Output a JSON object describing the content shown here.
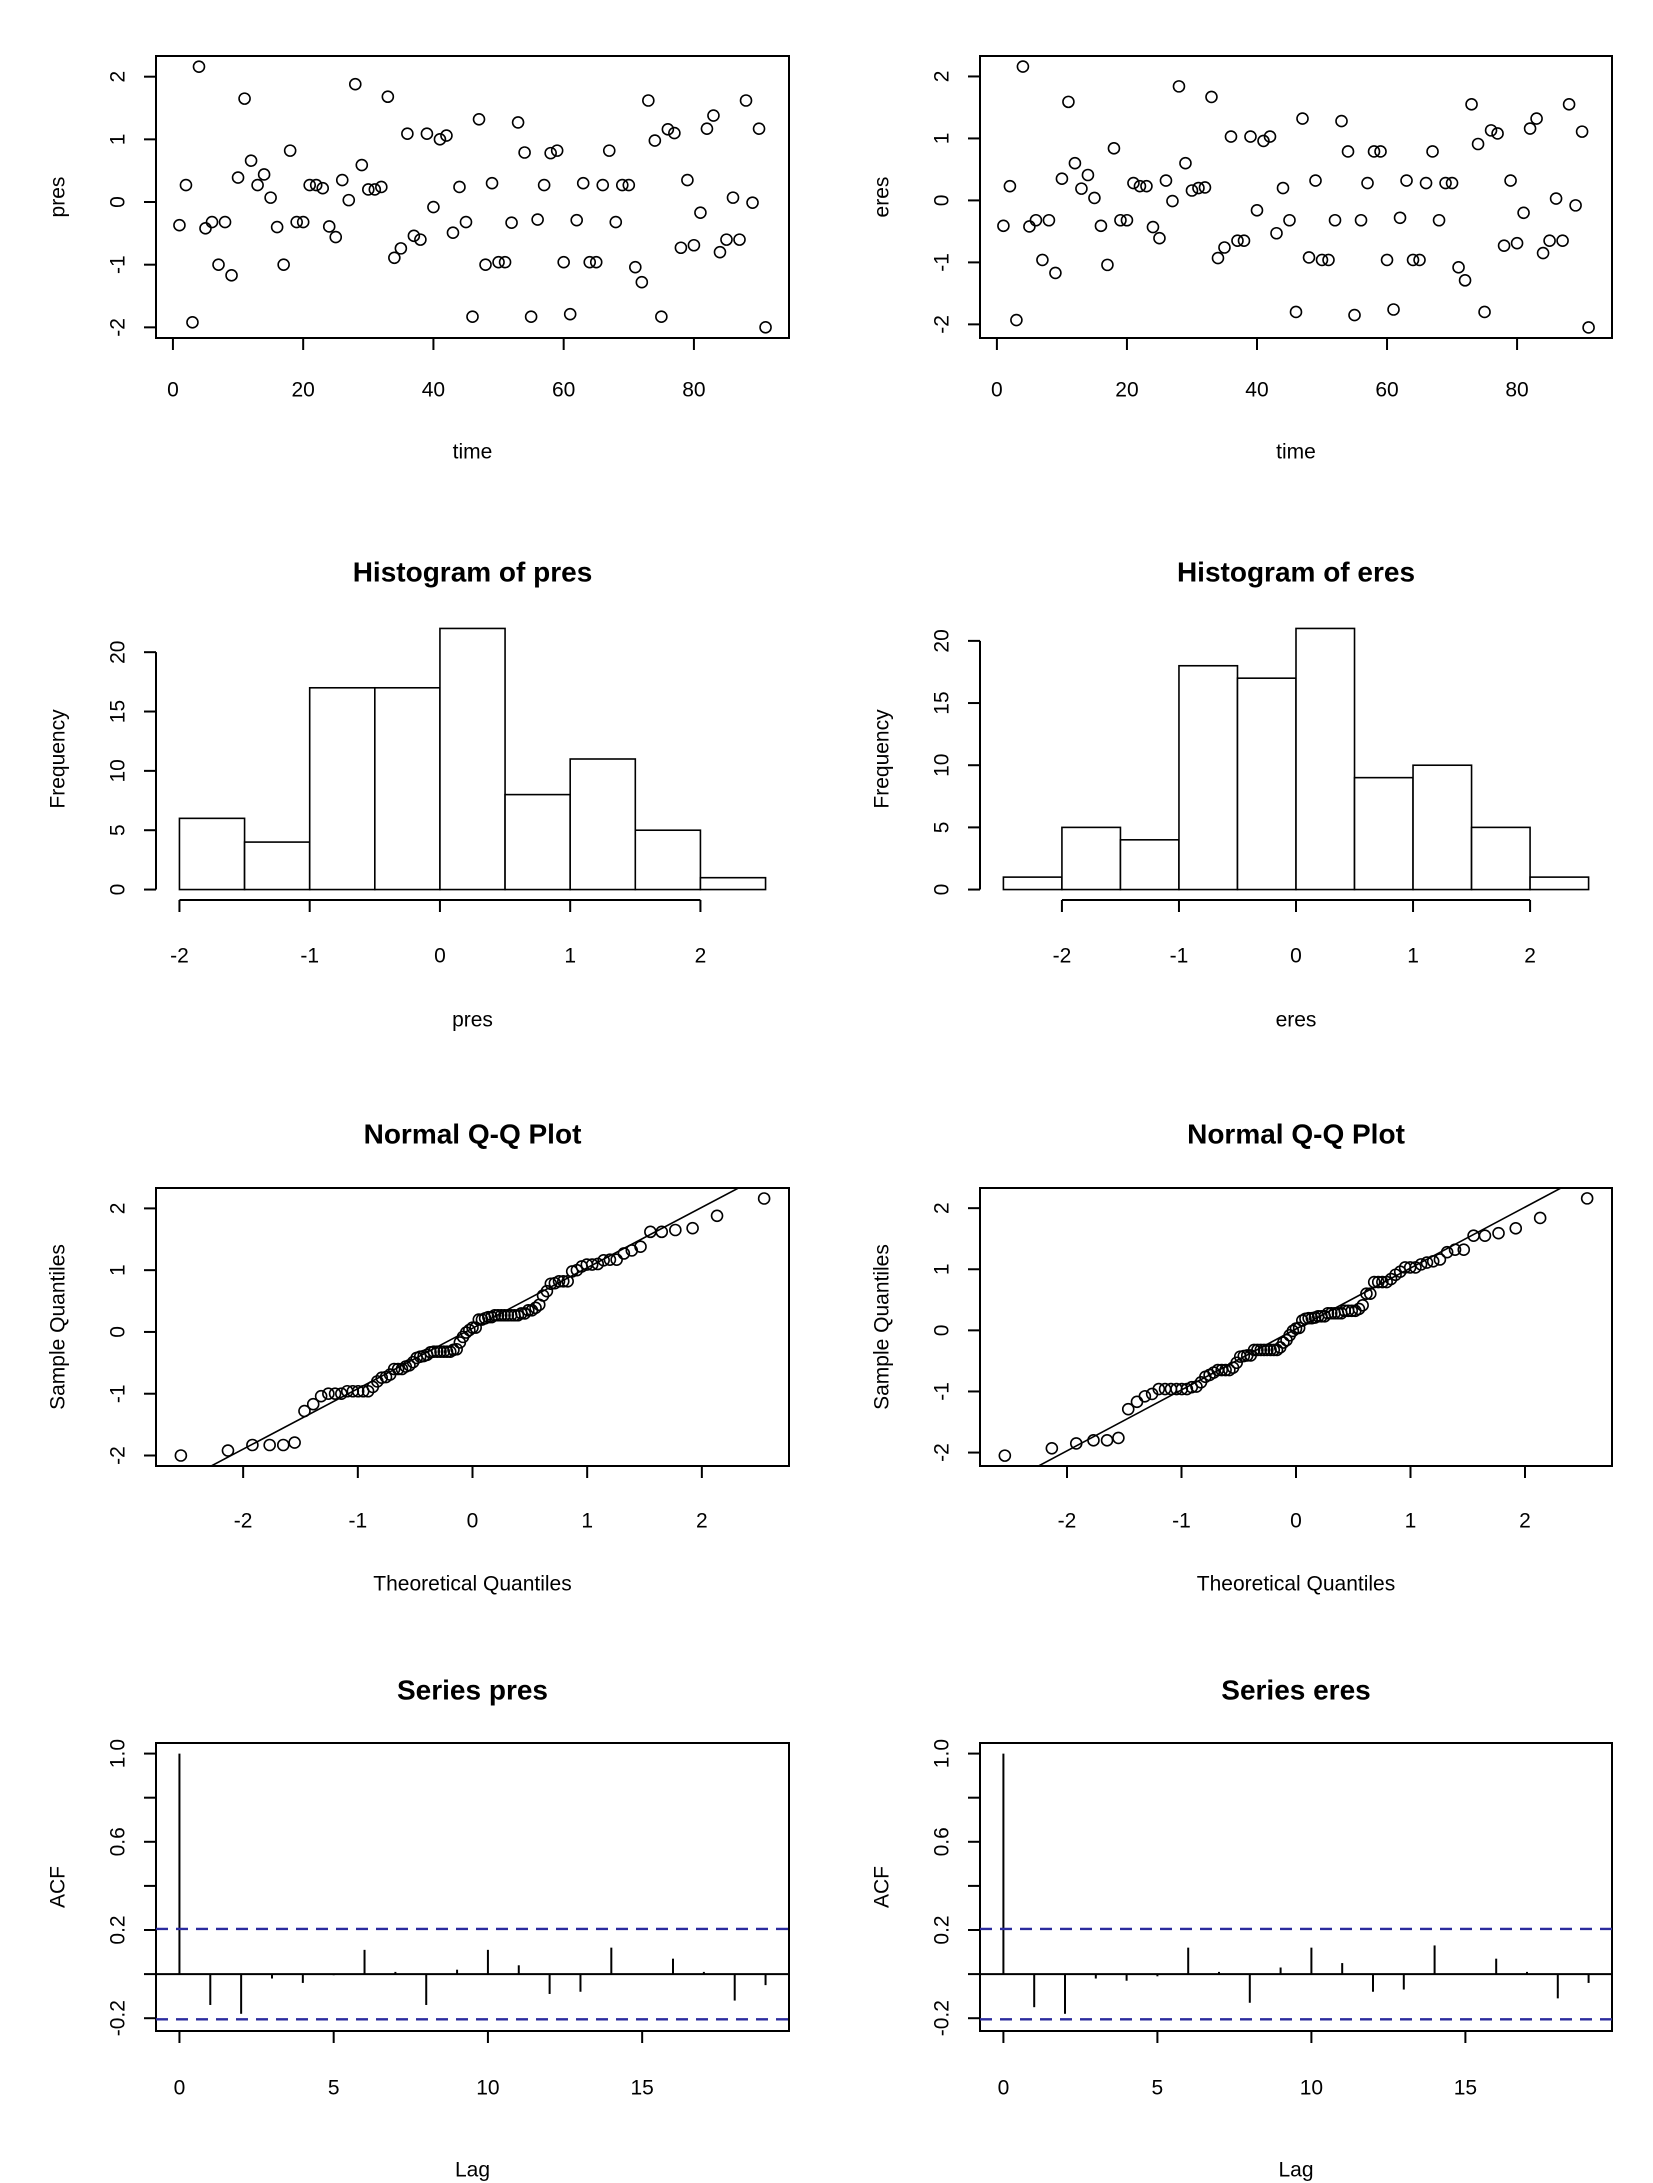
{
  "chart_data": [
    {
      "type": "scatter",
      "title": "",
      "xlabel": "time",
      "ylabel": "pres",
      "x_start": 1,
      "y": [
        -0.37,
        0.27,
        -1.92,
        2.16,
        -0.42,
        -0.32,
        -1.0,
        -0.32,
        -1.17,
        0.39,
        1.65,
        0.66,
        0.27,
        0.44,
        0.07,
        -0.4,
        -1.0,
        0.82,
        -0.32,
        -0.32,
        0.27,
        0.27,
        0.22,
        -0.39,
        -0.56,
        0.35,
        0.03,
        1.88,
        0.59,
        0.2,
        0.2,
        0.24,
        1.68,
        -0.89,
        -0.74,
        1.09,
        -0.54,
        -0.6,
        1.09,
        -0.08,
        1.0,
        1.06,
        -0.49,
        0.24,
        -0.32,
        -1.83,
        1.32,
        -1.0,
        0.3,
        -0.96,
        -0.96,
        -0.33,
        1.27,
        0.79,
        -1.83,
        -0.28,
        0.27,
        0.78,
        0.82,
        -0.96,
        -1.79,
        -0.29,
        0.3,
        -0.96,
        -0.96,
        0.27,
        0.82,
        -0.32,
        0.27,
        0.27,
        -1.04,
        -1.28,
        1.62,
        0.98,
        -1.83,
        1.16,
        1.1,
        -0.73,
        0.35,
        -0.69,
        -0.17,
        1.17,
        1.38,
        -0.8,
        -0.6,
        0.07,
        -0.6,
        1.62,
        -0.01,
        1.17,
        -2.0
      ],
      "xlim": [
        -2.6,
        94.6
      ],
      "ylim": [
        -2.17,
        2.33
      ],
      "x_ticks": [
        0,
        20,
        40,
        60,
        80
      ],
      "x_tick_labels": [
        "0",
        "20",
        "40",
        "60",
        "80"
      ],
      "y_ticks": [
        -2,
        -1,
        0,
        1,
        2
      ],
      "y_tick_labels": [
        "-2",
        "-1",
        "0",
        "1",
        "2"
      ],
      "grid": false
    },
    {
      "type": "scatter",
      "title": "",
      "xlabel": "time",
      "ylabel": "eres",
      "x_start": 1,
      "y": [
        -0.41,
        0.23,
        -1.93,
        2.16,
        -0.42,
        -0.32,
        -0.96,
        -0.32,
        -1.17,
        0.35,
        1.59,
        0.6,
        0.19,
        0.41,
        0.04,
        -0.41,
        -1.04,
        0.84,
        -0.32,
        -0.32,
        0.28,
        0.23,
        0.23,
        -0.43,
        -0.61,
        0.32,
        -0.01,
        1.84,
        0.6,
        0.16,
        0.2,
        0.21,
        1.67,
        -0.93,
        -0.76,
        1.03,
        -0.65,
        -0.65,
        1.03,
        -0.16,
        0.96,
        1.03,
        -0.53,
        0.2,
        -0.32,
        -1.8,
        1.32,
        -0.92,
        0.32,
        -0.96,
        -0.96,
        -0.32,
        1.28,
        0.79,
        -1.85,
        -0.32,
        0.28,
        0.79,
        0.79,
        -0.96,
        -1.76,
        -0.28,
        0.32,
        -0.96,
        -0.96,
        0.28,
        0.79,
        -0.32,
        0.28,
        0.28,
        -1.08,
        -1.29,
        1.55,
        0.91,
        -1.8,
        1.13,
        1.08,
        -0.73,
        0.32,
        -0.69,
        -0.2,
        1.16,
        1.32,
        -0.85,
        -0.65,
        0.03,
        -0.65,
        1.55,
        -0.08,
        1.11,
        -2.05
      ],
      "xlim": [
        -2.6,
        94.6
      ],
      "ylim": [
        -2.22,
        2.33
      ],
      "x_ticks": [
        0,
        20,
        40,
        60,
        80
      ],
      "x_tick_labels": [
        "0",
        "20",
        "40",
        "60",
        "80"
      ],
      "y_ticks": [
        -2,
        -1,
        0,
        1,
        2
      ],
      "y_tick_labels": [
        "-2",
        "-1",
        "0",
        "1",
        "2"
      ],
      "grid": false
    },
    {
      "type": "bar",
      "subtype": "histogram",
      "title": "Histogram of pres",
      "xlabel": "pres",
      "ylabel": "Frequency",
      "breaks": [
        -2,
        -1.5,
        -1,
        -0.5,
        0,
        0.5,
        1,
        1.5,
        2,
        2.5
      ],
      "counts": [
        6,
        4,
        17,
        17,
        22,
        8,
        11,
        5,
        1
      ],
      "xlim": [
        -2.18,
        2.68
      ],
      "ylim": [
        -0.88,
        22.88
      ],
      "x_ticks": [
        -2,
        -1,
        0,
        1,
        2
      ],
      "x_tick_labels": [
        "-2",
        "-1",
        "0",
        "1",
        "2"
      ],
      "y_ticks": [
        0,
        5,
        10,
        15,
        20
      ],
      "y_tick_labels": [
        "0",
        "5",
        "10",
        "15",
        "20"
      ],
      "grid": false
    },
    {
      "type": "bar",
      "subtype": "histogram",
      "title": "Histogram of eres",
      "xlabel": "eres",
      "ylabel": "Frequency",
      "breaks": [
        -2.5,
        -2,
        -1.5,
        -1,
        -0.5,
        0,
        0.5,
        1,
        1.5,
        2,
        2.5
      ],
      "counts": [
        1,
        5,
        4,
        18,
        17,
        21,
        9,
        10,
        5,
        1
      ],
      "xlim": [
        -2.7,
        2.7
      ],
      "ylim": [
        -0.84,
        21.84
      ],
      "x_ticks": [
        -2,
        -1,
        0,
        1,
        2
      ],
      "x_tick_labels": [
        "-2",
        "-1",
        "0",
        "1",
        "2"
      ],
      "y_ticks": [
        0,
        5,
        10,
        15,
        20
      ],
      "y_tick_labels": [
        "0",
        "5",
        "10",
        "15",
        "20"
      ],
      "grid": false
    },
    {
      "type": "scatter",
      "subtype": "qq",
      "title": "Normal Q-Q Plot",
      "xlabel": "Theoretical Quantiles",
      "ylabel": "Sample Quantiles",
      "sample_of_chart": 0,
      "reference_line": "qqline",
      "xlim": [
        -2.76,
        2.76
      ],
      "ylim": [
        -2.17,
        2.33
      ],
      "x_ticks": [
        -2,
        -1,
        0,
        1,
        2
      ],
      "x_tick_labels": [
        "-2",
        "-1",
        "0",
        "1",
        "2"
      ],
      "y_ticks": [
        -2,
        -1,
        0,
        1,
        2
      ],
      "y_tick_labels": [
        "-2",
        "-1",
        "0",
        "1",
        "2"
      ],
      "grid": false
    },
    {
      "type": "scatter",
      "subtype": "qq",
      "title": "Normal Q-Q Plot",
      "xlabel": "Theoretical Quantiles",
      "ylabel": "Sample Quantiles",
      "sample_of_chart": 1,
      "reference_line": "qqline",
      "xlim": [
        -2.76,
        2.76
      ],
      "ylim": [
        -2.22,
        2.33
      ],
      "x_ticks": [
        -2,
        -1,
        0,
        1,
        2
      ],
      "x_tick_labels": [
        "-2",
        "-1",
        "0",
        "1",
        "2"
      ],
      "y_ticks": [
        -2,
        -1,
        0,
        1,
        2
      ],
      "y_tick_labels": [
        "-2",
        "-1",
        "0",
        "1",
        "2"
      ],
      "grid": false
    },
    {
      "type": "bar",
      "subtype": "acf",
      "title": "Series  pres",
      "xlabel": "Lag",
      "ylabel": "ACF",
      "lags": [
        0,
        1,
        2,
        3,
        4,
        5,
        6,
        7,
        8,
        9,
        10,
        11,
        12,
        13,
        14,
        15,
        16,
        17,
        18,
        19
      ],
      "values": [
        1.0,
        -0.14,
        -0.18,
        -0.02,
        -0.04,
        -0.005,
        0.11,
        0.01,
        -0.14,
        0.02,
        0.11,
        0.04,
        -0.09,
        -0.08,
        0.12,
        0.0,
        0.07,
        0.01,
        -0.12,
        -0.05
      ],
      "confidence_limit": 0.205,
      "confidence_color": "#2b2b9e",
      "xlim": [
        -0.76,
        19.76
      ],
      "ylim": [
        -0.258,
        1.048
      ],
      "x_ticks": [
        0,
        5,
        10,
        15
      ],
      "x_tick_labels": [
        "0",
        "5",
        "10",
        "15"
      ],
      "y_ticks": [
        -0.2,
        0,
        0.2,
        0.4,
        0.6,
        0.8,
        1.0
      ],
      "y_tick_label_values": [
        -0.2,
        0.2,
        0.6,
        1.0
      ],
      "y_tick_labels": [
        "-0.2",
        "0.2",
        "0.6",
        "1.0"
      ],
      "grid": false
    },
    {
      "type": "bar",
      "subtype": "acf",
      "title": "Series  eres",
      "xlabel": "Lag",
      "ylabel": "ACF",
      "lags": [
        0,
        1,
        2,
        3,
        4,
        5,
        6,
        7,
        8,
        9,
        10,
        11,
        12,
        13,
        14,
        15,
        16,
        17,
        18,
        19
      ],
      "values": [
        1.0,
        -0.15,
        -0.18,
        -0.02,
        -0.03,
        -0.01,
        0.12,
        0.01,
        -0.13,
        0.03,
        0.12,
        0.05,
        -0.08,
        -0.07,
        0.13,
        0.0,
        0.07,
        0.01,
        -0.11,
        -0.04
      ],
      "confidence_limit": 0.205,
      "confidence_color": "#2b2b9e",
      "xlim": [
        -0.76,
        19.76
      ],
      "ylim": [
        -0.258,
        1.048
      ],
      "x_ticks": [
        0,
        5,
        10,
        15
      ],
      "x_tick_labels": [
        "0",
        "5",
        "10",
        "15"
      ],
      "y_ticks": [
        -0.2,
        0,
        0.2,
        0.4,
        0.6,
        0.8,
        1.0
      ],
      "y_tick_label_values": [
        -0.2,
        0.2,
        0.6,
        1.0
      ],
      "y_tick_labels": [
        "-0.2",
        "0.2",
        "0.6",
        "1.0"
      ],
      "grid": false
    }
  ]
}
